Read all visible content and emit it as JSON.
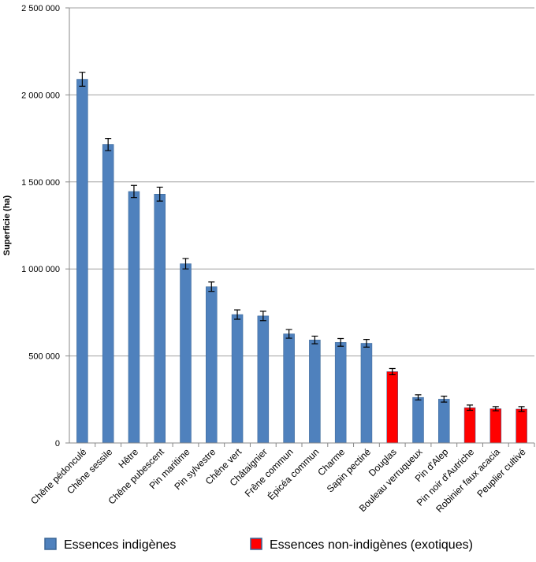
{
  "chart_data": {
    "type": "bar",
    "y_label": "Superficie (ha)",
    "categories": [
      "Chêne pédonculé",
      "Chêne sessile",
      "Hêtre",
      "Chêne pubescent",
      "Pin maritime",
      "Pin sylvestre",
      "Chêne vert",
      "Châtaignier",
      "Frêne commun",
      "Épicéa commun",
      "Charme",
      "Sapin pectiné",
      "Douglas",
      "Bouleau verruqueux",
      "Pin d'Alep",
      "Pin noir d'Autriche",
      "Robinier faux acacia",
      "Peuplier cultivé"
    ],
    "series": [
      {
        "name": "Essences indigènes",
        "color": "#4f81bd",
        "values": [
          2090000,
          1715000,
          1445000,
          1430000,
          1030000,
          898000,
          738000,
          730000,
          627000,
          592000,
          578000,
          573000,
          null,
          262000,
          252000,
          null,
          null,
          null
        ],
        "errors": [
          40000,
          35000,
          35000,
          40000,
          30000,
          27000,
          27000,
          27000,
          25000,
          22000,
          22000,
          22000,
          null,
          15000,
          17000,
          null,
          null,
          null
        ]
      },
      {
        "name": "Essences non-indigènes (exotiques)",
        "color": "#ff0000",
        "values": [
          null,
          null,
          null,
          null,
          null,
          null,
          null,
          null,
          null,
          null,
          null,
          null,
          410000,
          null,
          null,
          203000,
          197000,
          195000
        ],
        "errors": [
          null,
          null,
          null,
          null,
          null,
          null,
          null,
          null,
          null,
          null,
          null,
          null,
          18000,
          null,
          null,
          15000,
          12000,
          14000
        ]
      }
    ],
    "ylim": [
      0,
      2500000
    ],
    "yticks": [
      0,
      {
        "value": 500000,
        "label": "500 000"
      },
      {
        "value": 1000000,
        "label": "1 000 000"
      },
      {
        "value": 1500000,
        "label": "1 500 000"
      },
      {
        "value": 2000000,
        "label": "2 000 000"
      },
      {
        "value": 2500000,
        "label": "2 500 000"
      }
    ],
    "grid": true
  }
}
